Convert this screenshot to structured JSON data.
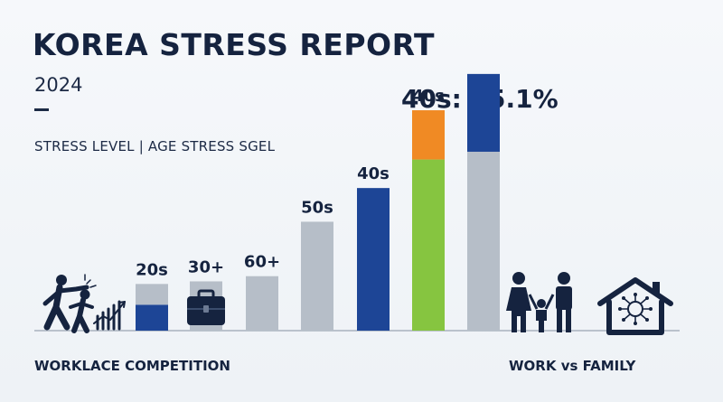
{
  "header": {
    "title": "KOREA STRESS REPORT",
    "year": "2024",
    "subtitle": "STRESS LEVEL | AGE STRESS SGEL",
    "headline": "40s: 35.1%"
  },
  "footer": {
    "left_label": "WORKLACE COMPETITION",
    "right_label": "WORK vs FAMILY"
  },
  "icons": {
    "left": "competition-fighting-icon",
    "briefcase": "briefcase-icon",
    "family": "family-icon",
    "house": "house-network-icon"
  },
  "colors": {
    "navy": "#1d4596",
    "gray": "#b6bec8",
    "green": "#86c540",
    "orange": "#f08a24",
    "text": "#15233f"
  },
  "chart_data": {
    "type": "bar",
    "title": "",
    "xlabel": "",
    "ylabel": "",
    "ylim": [
      0,
      100
    ],
    "bars": [
      {
        "label": "20s",
        "segments": [
          {
            "value": 10,
            "color": "#1d4596"
          },
          {
            "value": 8,
            "color": "#b6bec8"
          }
        ]
      },
      {
        "label": "30+",
        "segments": [
          {
            "value": 19,
            "color": "#b6bec8"
          }
        ],
        "icon": "briefcase"
      },
      {
        "label": "60+",
        "segments": [
          {
            "value": 21,
            "color": "#b6bec8"
          }
        ]
      },
      {
        "label": "50s",
        "segments": [
          {
            "value": 42,
            "color": "#b6bec8"
          }
        ]
      },
      {
        "label": "40s",
        "segments": [
          {
            "value": 55,
            "color": "#1d4596"
          }
        ]
      },
      {
        "label": "40s",
        "segments": [
          {
            "value": 66,
            "color": "#86c540"
          },
          {
            "value": 19,
            "color": "#f08a24"
          }
        ]
      },
      {
        "label": "",
        "segments": [
          {
            "value": 69,
            "color": "#b6bec8"
          },
          {
            "value": 30,
            "color": "#1d4596"
          }
        ]
      }
    ]
  }
}
